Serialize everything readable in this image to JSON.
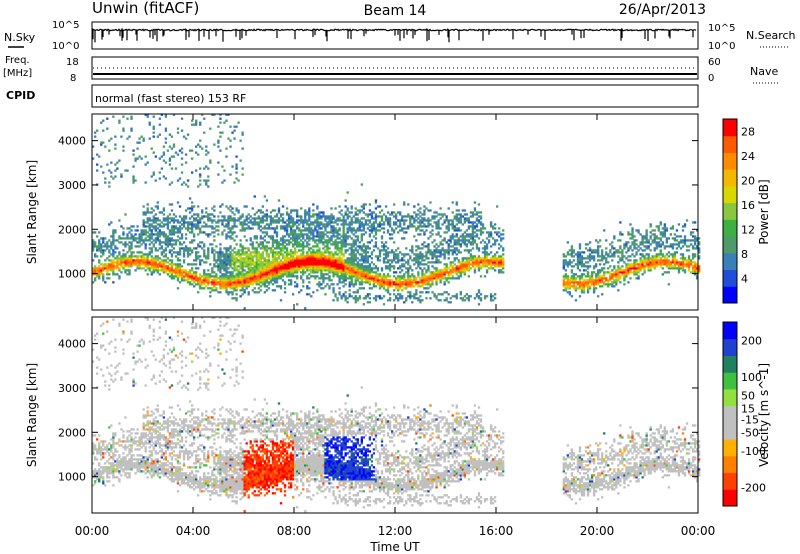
{
  "header": {
    "station": "Unwin (fitACF)",
    "beam": "Beam 14",
    "date": "26/Apr/2013"
  },
  "nsky_panel": {
    "left_label": "N.Sky",
    "right_label": "N.Search",
    "left_ticks": [
      "10^5",
      "10^0"
    ],
    "right_ticks": [
      "10^5",
      "10^0"
    ]
  },
  "freq_panel": {
    "left_label_1": "Freq.",
    "left_label_2": "[MHz]",
    "right_label": "Nave",
    "left_ticks": [
      "18",
      "8"
    ],
    "right_ticks": [
      "60",
      "0"
    ]
  },
  "cpid_panel": {
    "label": "CPID",
    "text": "normal (fast stereo) 153 RF"
  },
  "colors": {
    "power_scale": [
      "#0000ff",
      "#1f4fd8",
      "#3a7fb8",
      "#4e9a6a",
      "#3cb043",
      "#8cc63f",
      "#d8d800",
      "#f5b800",
      "#ff8c00",
      "#ff5a00",
      "#ff0000"
    ],
    "velocity_scale": [
      "#ff0000",
      "#ff4000",
      "#ff8000",
      "#ffb000",
      "#c0c0c0",
      "#c0c0c0",
      "#90e040",
      "#40c040",
      "#208060",
      "#2040d0",
      "#0000ff"
    ]
  },
  "chart_data": [
    {
      "type": "heatmap",
      "panel": "power",
      "ylabel": "Slant Range [km]",
      "yticks": [
        "4000",
        "3000",
        "2000",
        "1000"
      ],
      "ylim": [
        180,
        4600
      ],
      "xlim": [
        0,
        24
      ],
      "colorbar_label": "Power [dB]",
      "colorbar_ticks": [
        "28",
        "24",
        "20",
        "16",
        "12",
        "8",
        "4"
      ],
      "colorbar_range": [
        0,
        30
      ]
    },
    {
      "type": "heatmap",
      "panel": "velocity",
      "ylabel": "Slant Range [km]",
      "yticks": [
        "4000",
        "3000",
        "2000",
        "1000"
      ],
      "ylim": [
        180,
        4600
      ],
      "xlim": [
        0,
        24
      ],
      "colorbar_label": "Velocity [m s^-1]",
      "colorbar_ticks": [
        "200",
        "100",
        "50",
        "15",
        "-15",
        "-50",
        "-100",
        "-200"
      ],
      "colorbar_range": [
        -250,
        250
      ]
    }
  ],
  "xaxis": {
    "label": "Time UT",
    "ticks": [
      "00:00",
      "04:00",
      "08:00",
      "12:00",
      "16:00",
      "20:00",
      "00:00"
    ]
  }
}
